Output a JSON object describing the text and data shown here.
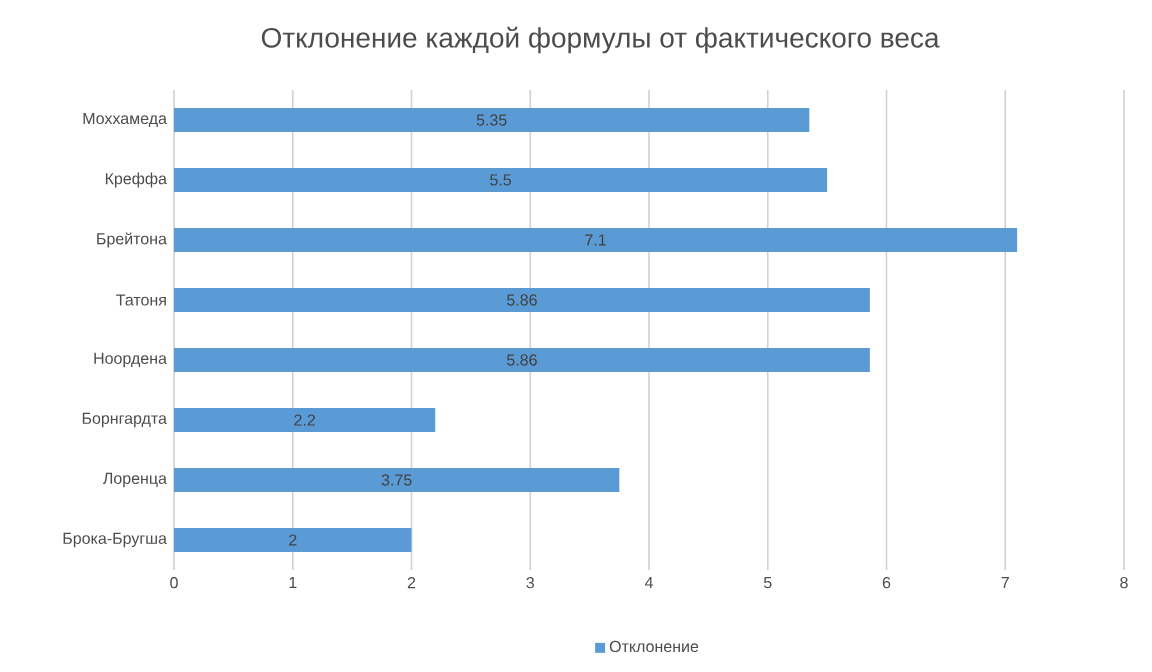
{
  "chart_data": {
    "type": "bar",
    "orientation": "horizontal",
    "title": "Отклонение каждой формулы от фактического веса",
    "categories": [
      "Моххамеда",
      "Креффа",
      "Брейтона",
      "Татоня",
      "Ноордена",
      "Борнгардта",
      "Лоренца",
      "Брока-Бругша"
    ],
    "series": [
      {
        "name": "Отклонение",
        "color": "#5b9bd5",
        "values": [
          5.35,
          5.5,
          7.1,
          5.86,
          5.86,
          2.2,
          3.75,
          2
        ]
      }
    ],
    "data_labels": true,
    "xlim": [
      0,
      8
    ],
    "xticks": [
      0,
      1,
      2,
      3,
      4,
      5,
      6,
      7,
      8
    ],
    "grid": "x",
    "legend": "bottom"
  }
}
